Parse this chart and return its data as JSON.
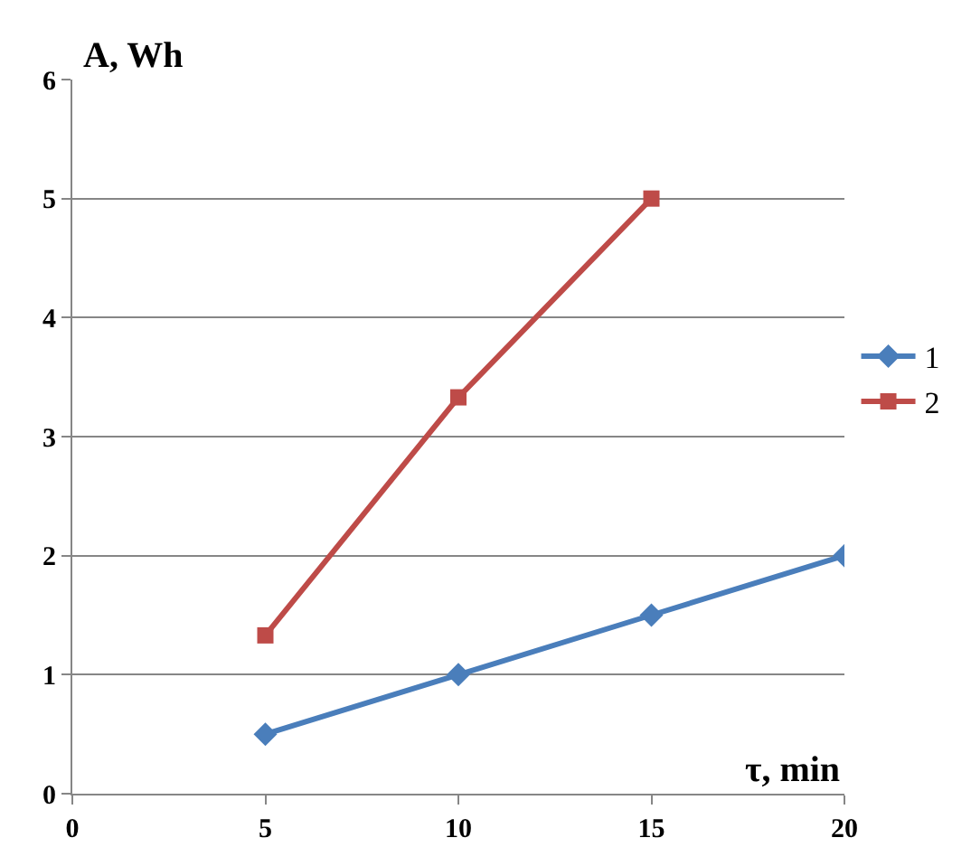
{
  "chart_data": {
    "type": "line",
    "xlabel": "τ, min",
    "ylabel": "A, Wh",
    "series": [
      {
        "name": "1",
        "color": "#4a7ebb",
        "x": [
          5,
          10,
          15,
          20
        ],
        "values": [
          0.5,
          1,
          1.5,
          2
        ],
        "marker": "diamond"
      },
      {
        "name": "2",
        "color": "#be4b48",
        "x": [
          5,
          10,
          15
        ],
        "values": [
          1.33,
          3.33,
          5
        ],
        "marker": "square"
      }
    ],
    "xlim": [
      0,
      20
    ],
    "xticks": [
      0,
      5,
      10,
      15,
      20
    ],
    "ylim": [
      0,
      6
    ],
    "yticks": [
      0,
      1,
      2,
      3,
      4,
      5,
      6
    ],
    "grid": "y",
    "legend": "right",
    "line_style": "solid"
  }
}
